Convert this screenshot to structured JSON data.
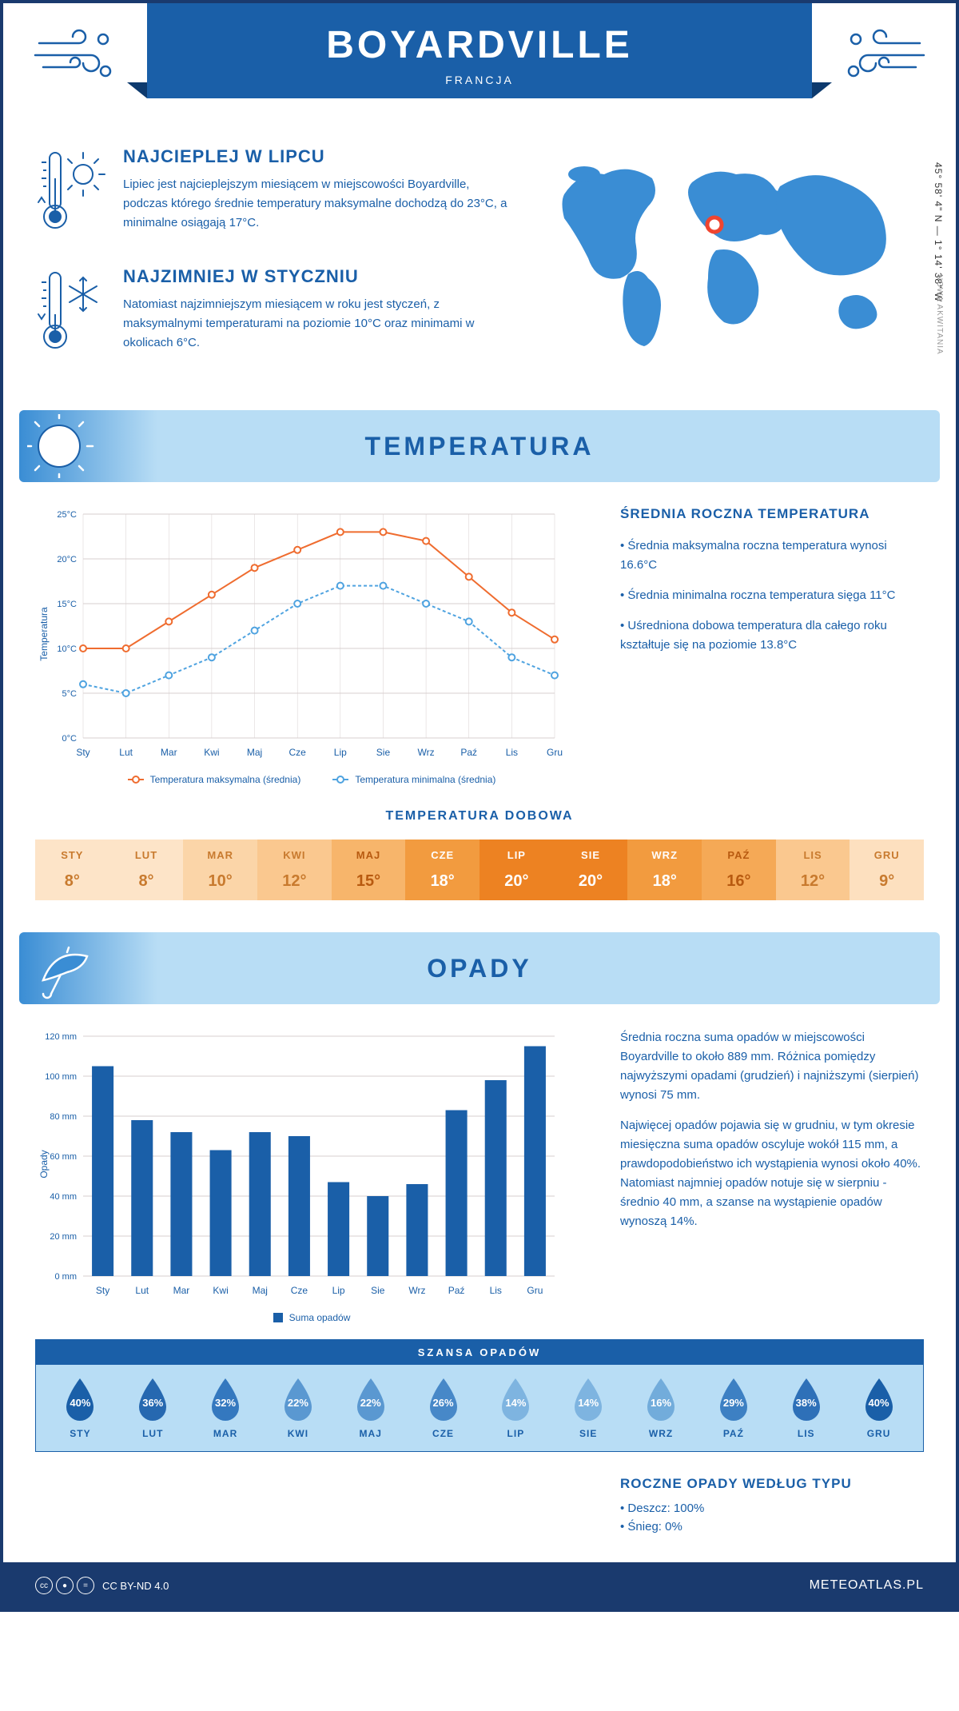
{
  "header": {
    "city": "BOYARDVILLE",
    "country": "FRANCJA"
  },
  "coords": "45° 58' 4\" N — 1° 14' 38\" W",
  "region": "NOWA AKWITANIA",
  "intro": {
    "hot": {
      "title": "NAJCIEPLEJ W LIPCU",
      "text": "Lipiec jest najcieplejszym miesiącem w miejscowości Boyardville, podczas którego średnie temperatury maksymalne dochodzą do 23°C, a minimalne osiągają 17°C."
    },
    "cold": {
      "title": "NAJZIMNIEJ W STYCZNIU",
      "text": "Natomiast najzimniejszym miesiącem w roku jest styczeń, z maksymalnymi temperaturami na poziomie 10°C oraz minimami w okolicach 6°C."
    }
  },
  "sections": {
    "temperature": "TEMPERATURA",
    "precipitation": "OPADY"
  },
  "months": [
    "Sty",
    "Lut",
    "Mar",
    "Kwi",
    "Maj",
    "Cze",
    "Lip",
    "Sie",
    "Wrz",
    "Paź",
    "Lis",
    "Gru"
  ],
  "months_upper": [
    "STY",
    "LUT",
    "MAR",
    "KWI",
    "MAJ",
    "CZE",
    "LIP",
    "SIE",
    "WRZ",
    "PAŹ",
    "LIS",
    "GRU"
  ],
  "temp_chart": {
    "y_axis_label": "Temperatura",
    "y_ticks": [
      "0°C",
      "5°C",
      "10°C",
      "15°C",
      "20°C",
      "25°C"
    ],
    "ylim": [
      0,
      25
    ],
    "max_series": [
      10,
      10,
      13,
      16,
      19,
      21,
      23,
      23,
      22,
      18,
      14,
      11
    ],
    "min_series": [
      6,
      5,
      7,
      9,
      12,
      15,
      17,
      17,
      15,
      13,
      9,
      7
    ],
    "max_color": "#ef6c2f",
    "min_color": "#4fa3e0",
    "grid_color": "#d7cfcf",
    "legend": {
      "max": "Temperatura maksymalna (średnia)",
      "min": "Temperatura minimalna (średnia)"
    }
  },
  "temp_side": {
    "title": "ŚREDNIA ROCZNA TEMPERATURA",
    "bullets": [
      "• Średnia maksymalna roczna temperatura wynosi 16.6°C",
      "• Średnia minimalna roczna temperatura sięga 11°C",
      "• Uśredniona dobowa temperatura dla całego roku kształtuje się na poziomie 13.8°C"
    ]
  },
  "daily_temp": {
    "title": "TEMPERATURA DOBOWA",
    "values": [
      "8°",
      "8°",
      "10°",
      "12°",
      "15°",
      "18°",
      "20°",
      "20°",
      "18°",
      "16°",
      "12°",
      "9°"
    ],
    "colors": [
      "#fde4c8",
      "#fde4c8",
      "#fbd5a8",
      "#fac88f",
      "#f7b56b",
      "#f29b3f",
      "#ed8222",
      "#ed8222",
      "#f29b3f",
      "#f5a956",
      "#fac88f",
      "#fde0bf"
    ],
    "text_colors": [
      "#c87a2e",
      "#c87a2e",
      "#c87a2e",
      "#c87a2e",
      "#b85a10",
      "#fff",
      "#fff",
      "#fff",
      "#fff",
      "#b85a10",
      "#c87a2e",
      "#c87a2e"
    ]
  },
  "precip_chart": {
    "y_axis_label": "Opady",
    "y_ticks": [
      "0 mm",
      "20 mm",
      "40 mm",
      "60 mm",
      "80 mm",
      "100 mm",
      "120 mm"
    ],
    "ylim": [
      0,
      120
    ],
    "values": [
      105,
      78,
      72,
      63,
      72,
      70,
      47,
      40,
      46,
      83,
      98,
      115
    ],
    "bar_color": "#1a5fa8",
    "grid_color": "#d7cfcf",
    "legend": "Suma opadów"
  },
  "precip_side": {
    "p1": "Średnia roczna suma opadów w miejscowości Boyardville to około 889 mm. Różnica pomiędzy najwyższymi opadami (grudzień) i najniższymi (sierpień) wynosi 75 mm.",
    "p2": "Najwięcej opadów pojawia się w grudniu, w tym okresie miesięczna suma opadów oscyluje wokół 115 mm, a prawdopodobieństwo ich wystąpienia wynosi około 40%. Natomiast najmniej opadów notuje się w sierpniu - średnio 40 mm, a szanse na wystąpienie opadów wynoszą 14%."
  },
  "precip_chance": {
    "title": "SZANSA OPADÓW",
    "values": [
      "40%",
      "36%",
      "32%",
      "22%",
      "22%",
      "26%",
      "14%",
      "14%",
      "16%",
      "29%",
      "38%",
      "40%"
    ],
    "colors": [
      "#1a5fa8",
      "#2668b0",
      "#3478bf",
      "#5a98d1",
      "#5a98d1",
      "#4788c8",
      "#7eb4e0",
      "#7eb4e0",
      "#72acdb",
      "#3d80c3",
      "#2e70b8",
      "#1a5fa8"
    ]
  },
  "precip_type": {
    "title": "ROCZNE OPADY WEDŁUG TYPU",
    "items": [
      "• Deszcz: 100%",
      "• Śnieg: 0%"
    ]
  },
  "footer": {
    "license": "CC BY-ND 4.0",
    "site": "METEOATLAS.PL"
  }
}
